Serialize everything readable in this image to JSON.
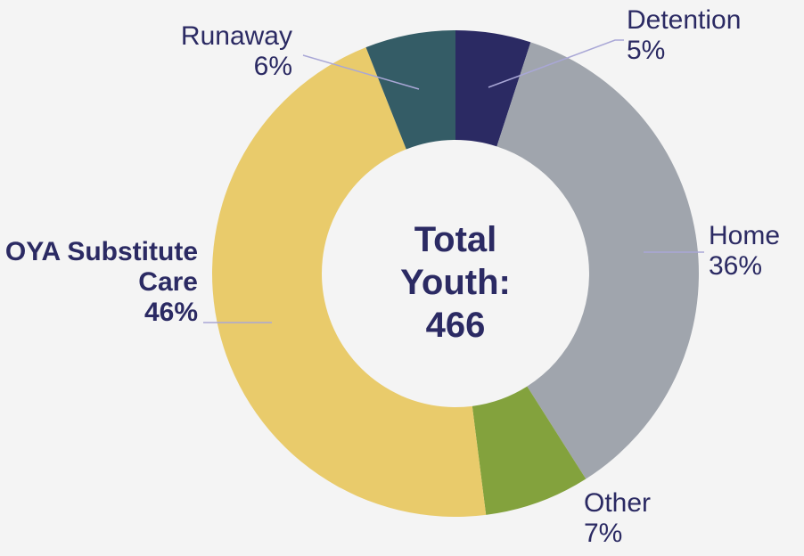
{
  "chart_data": {
    "type": "donut",
    "categories": [
      "Detention",
      "Home",
      "Other",
      "OYA Substitute Care",
      "Runaway"
    ],
    "values": [
      5,
      36,
      7,
      46,
      6
    ],
    "value_labels": [
      "5%",
      "36%",
      "7%",
      "46%",
      "6%"
    ],
    "colors": [
      "#2b2a63",
      "#a0a5ad",
      "#83a23d",
      "#e9cb6b",
      "#345c66"
    ],
    "center_text": "Total Youth:",
    "total": 466
  }
}
